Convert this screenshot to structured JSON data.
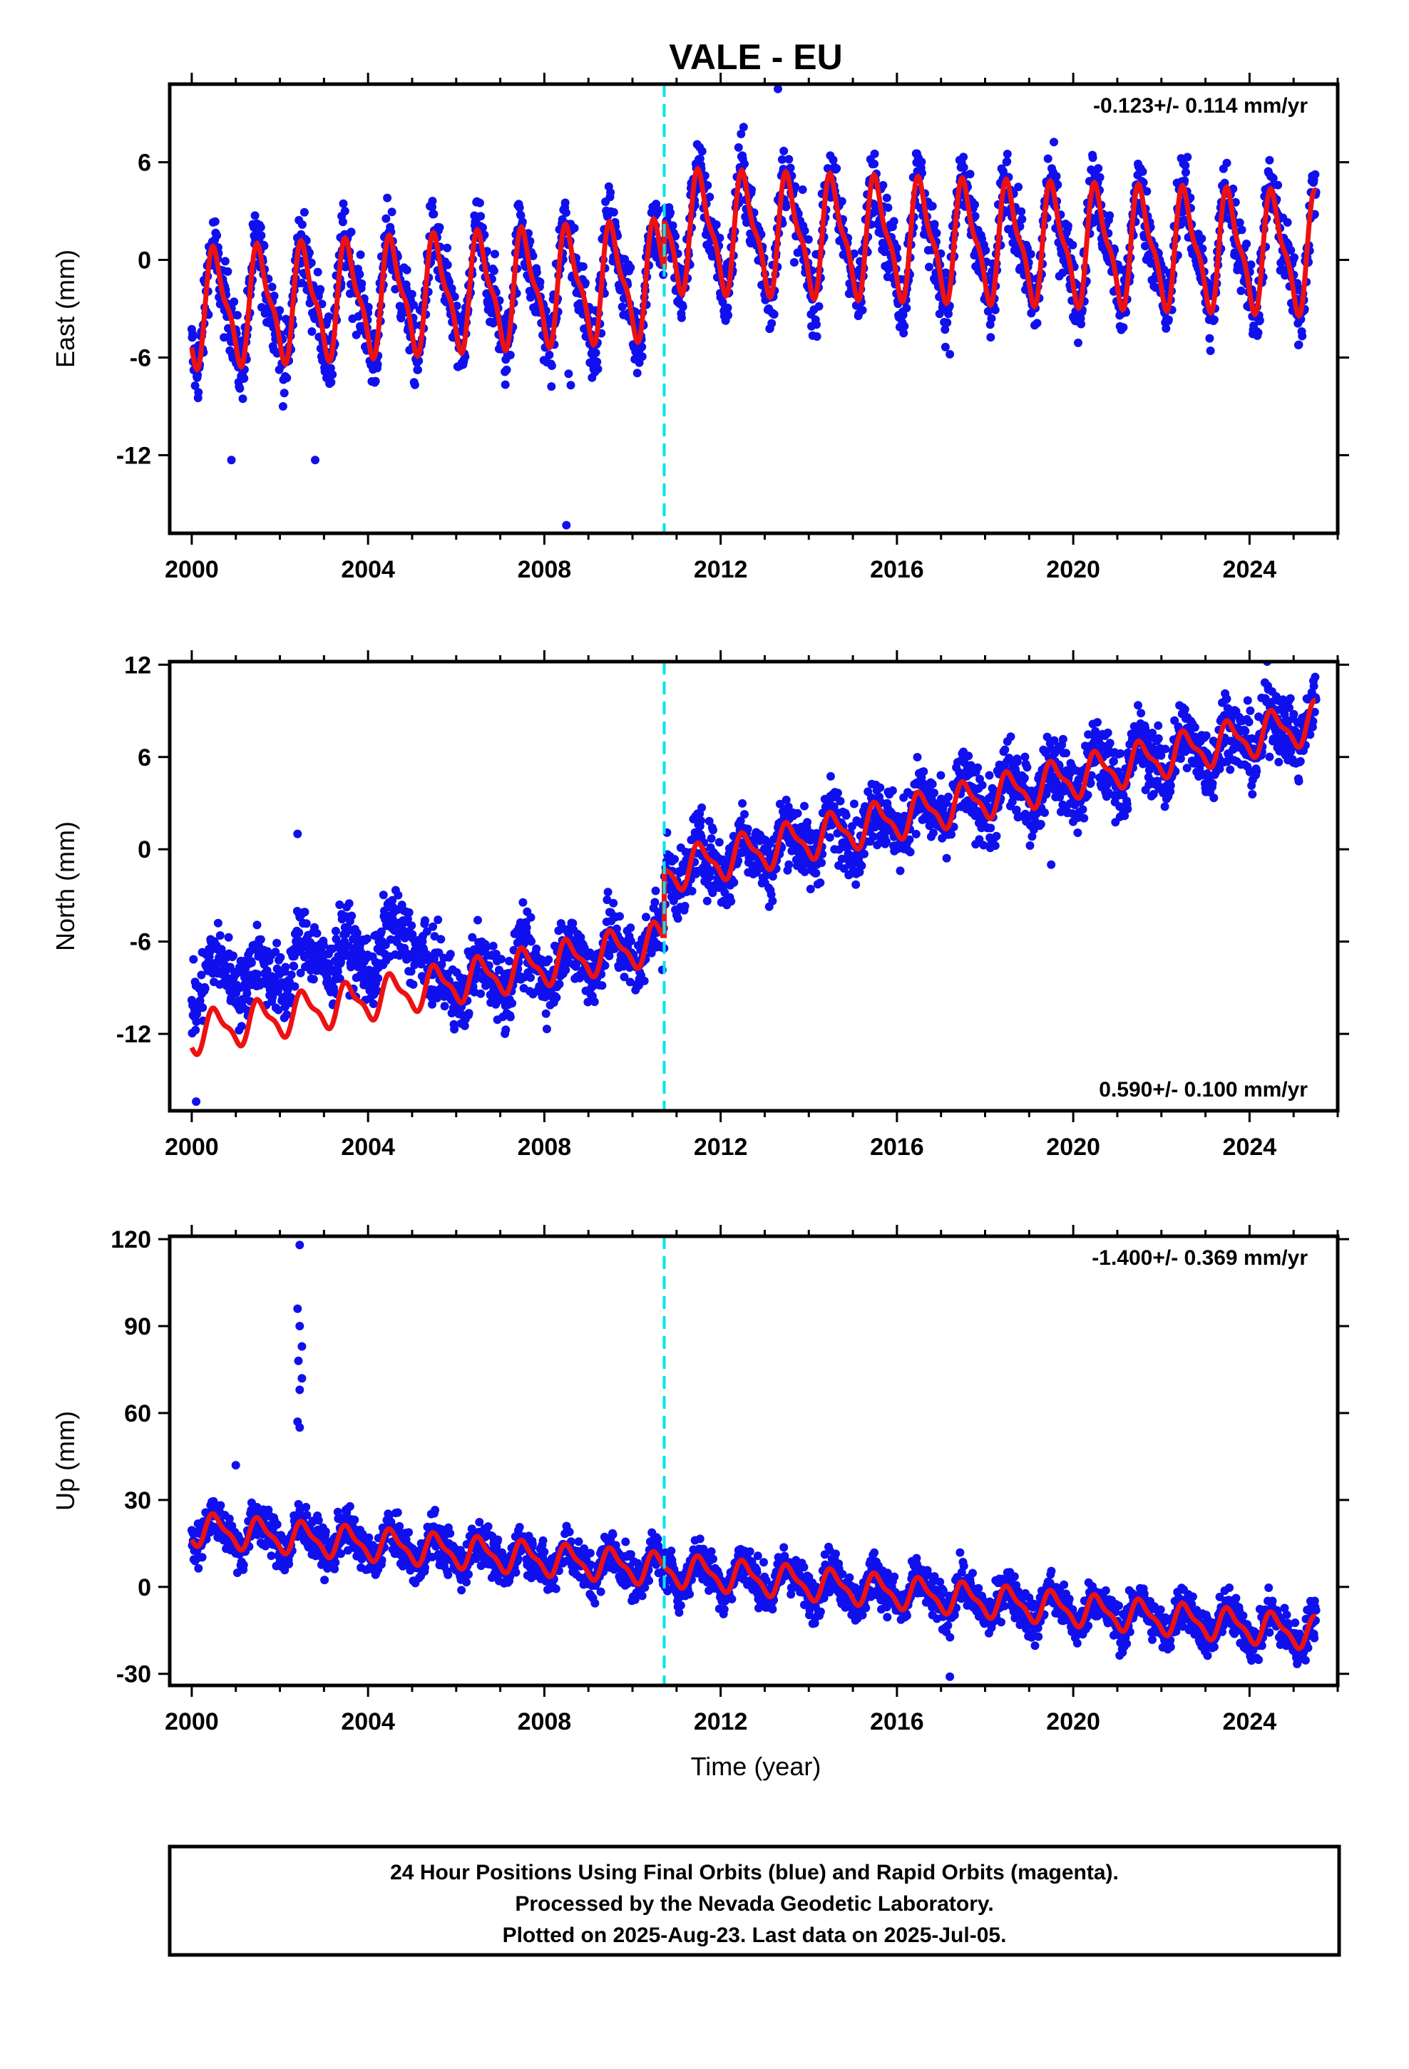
{
  "chart_data": {
    "type": "scatter",
    "title": "VALE - EU",
    "xlabel": "Time (year)",
    "x_range": [
      1999.5,
      2026.0
    ],
    "x_ticks": [
      2000,
      2004,
      2008,
      2012,
      2016,
      2020,
      2024
    ],
    "data_start": 2000.0,
    "data_end": 2025.51,
    "offset_epoch": 2010.72,
    "offset_line_color": "#00e5ee",
    "point_color": "#1010ee",
    "model_color": "#ee1111",
    "legend": "none",
    "grid": false,
    "panels": [
      {
        "component": "East",
        "ylabel": "East (mm)",
        "ylim": [
          -16.8,
          10.8
        ],
        "y_ticks": [
          6,
          0,
          -6,
          -12
        ],
        "rate_text": "-0.123+/- 0.114 mm/yr",
        "rate_position": "top-right",
        "model": {
          "before": {
            "start": -3.0,
            "end": -1.2,
            "amplitude": 3.2,
            "phase": 0.3
          },
          "after": {
            "start": 1.8,
            "end": 0.4,
            "amplitude": 3.3,
            "phase": 0.3
          }
        },
        "scatter_noise": 1.5,
        "outliers": [
          [
            2008.5,
            -16.3
          ],
          [
            2008.55,
            -7.0
          ],
          [
            2008.6,
            -7.7
          ],
          [
            2000.9,
            -12.3
          ],
          [
            2002.8,
            -12.3
          ],
          [
            2017.2,
            -5.8
          ],
          [
            2013.3,
            10.5
          ]
        ]
      },
      {
        "component": "North",
        "ylabel": "North (mm)",
        "ylim": [
          -17.0,
          12.2
        ],
        "y_ticks": [
          12,
          6,
          0,
          -6,
          -12
        ],
        "rate_text": "0.590+/- 0.100 mm/yr",
        "rate_position": "bottom-right",
        "model": {
          "before": {
            "start": -12.0,
            "end": -6.0,
            "amplitude": 1.2,
            "phase": 0.3
          },
          "after": {
            "start": -1.5,
            "end": 8.3,
            "amplitude": 1.2,
            "phase": 0.3
          }
        },
        "scatter_noise": 1.5,
        "outliers": [
          [
            2000.1,
            -16.4
          ],
          [
            2002.4,
            1.0
          ],
          [
            2024.4,
            12.2
          ],
          [
            2019.5,
            -1.0
          ]
        ]
      },
      {
        "component": "Up",
        "ylabel": "Up (mm)",
        "ylim": [
          -34,
          121
        ],
        "y_ticks": [
          120,
          90,
          60,
          30,
          0,
          -30
        ],
        "rate_text": "-1.400+/- 0.369 mm/yr",
        "rate_position": "top-right",
        "model": {
          "before": {
            "start": 20.0,
            "end": 6.0,
            "amplitude": 5.0,
            "phase": 0.3
          },
          "after": {
            "start": 6.0,
            "end": -16.0,
            "amplitude": 5.0,
            "phase": 0.3
          }
        },
        "scatter_noise": 5.0,
        "outliers": [
          [
            2002.45,
            118
          ],
          [
            2002.4,
            96
          ],
          [
            2002.45,
            90
          ],
          [
            2002.5,
            83
          ],
          [
            2002.42,
            78
          ],
          [
            2002.5,
            72
          ],
          [
            2002.45,
            68
          ],
          [
            2002.4,
            57
          ],
          [
            2002.45,
            55
          ],
          [
            2001.0,
            42
          ],
          [
            2017.2,
            -31
          ]
        ]
      }
    ],
    "caption": [
      "24 Hour Positions Using Final Orbits (blue) and Rapid Orbits (magenta).",
      "Processed by the Nevada Geodetic Laboratory.",
      "Plotted on 2025-Aug-23. Last data on 2025-Jul-05."
    ]
  }
}
